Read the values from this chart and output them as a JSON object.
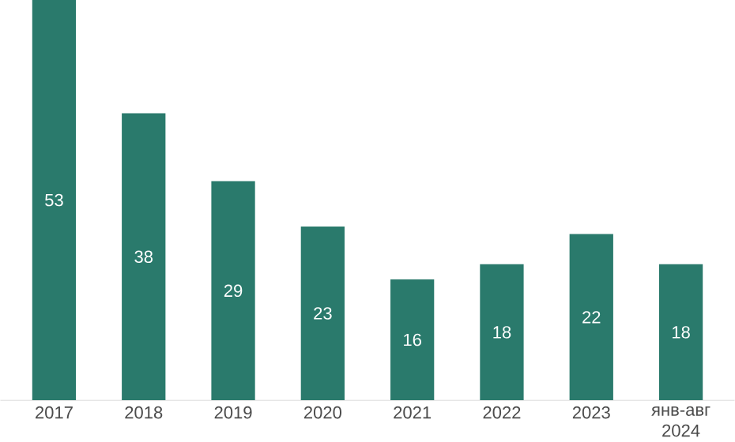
{
  "chart_data": {
    "type": "bar",
    "categories": [
      "2017",
      "2018",
      "2019",
      "2020",
      "2021",
      "2022",
      "2023",
      "янв-авг 2024"
    ],
    "values": [
      53,
      38,
      29,
      23,
      16,
      18,
      22,
      18
    ],
    "color": "#2a7a6c",
    "data_labels": true
  }
}
